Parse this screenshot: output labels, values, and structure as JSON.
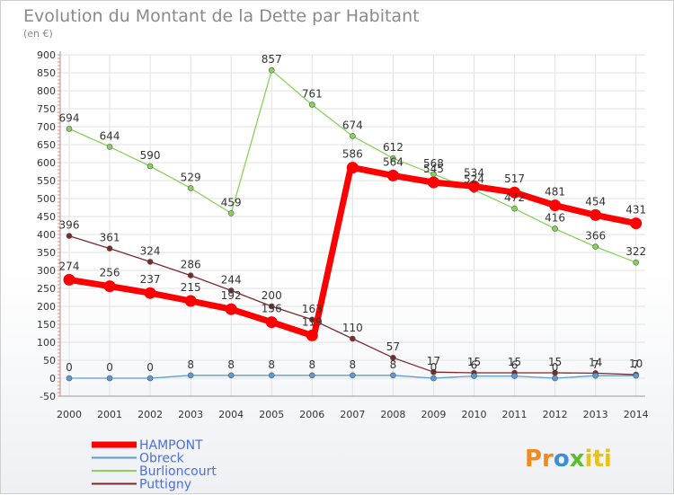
{
  "chart_data": {
    "type": "line",
    "title": "Evolution du Montant de la Dette par Habitant",
    "subtitle": "(en €)",
    "xlabel": "",
    "ylabel": "",
    "x": [
      "2000",
      "2001",
      "2002",
      "2003",
      "2004",
      "2005",
      "2006",
      "2007",
      "2008",
      "2009",
      "2010",
      "2011",
      "2012",
      "2013",
      "2014"
    ],
    "ylim": [
      -50,
      900
    ],
    "yticks": [
      -50,
      0,
      50,
      100,
      150,
      200,
      250,
      300,
      350,
      400,
      450,
      500,
      550,
      600,
      650,
      700,
      750,
      800,
      850,
      900
    ],
    "grid": true,
    "legend_position": "bottom-left",
    "series": [
      {
        "name": "Burlioncourt",
        "color": "#88d25a",
        "values": [
          694,
          644,
          590,
          529,
          459,
          857,
          761,
          674,
          612,
          568,
          524,
          472,
          416,
          366,
          322
        ],
        "labels": [
          "694",
          "644",
          "590",
          "529",
          "459",
          "857",
          "761",
          "674",
          "612",
          "568",
          "524",
          "472",
          "416",
          "366",
          "322"
        ]
      },
      {
        "name": "Puttigny",
        "color": "#7a2a2a",
        "values": [
          396,
          361,
          324,
          286,
          244,
          200,
          163,
          110,
          57,
          17,
          15,
          15,
          15,
          14,
          10
        ],
        "labels": [
          "396",
          "361",
          "324",
          "286",
          "244",
          "200",
          "163",
          "110",
          "57",
          "17",
          "15",
          "15",
          "15",
          "14",
          "10"
        ]
      },
      {
        "name": "Obreck",
        "color": "#5b9bd5",
        "values": [
          0,
          0,
          0,
          8,
          8,
          8,
          8,
          8,
          8,
          0,
          6,
          6,
          0,
          7,
          7
        ],
        "labels": [
          "0",
          "0",
          "0",
          "8",
          "8",
          "8",
          "8",
          "8",
          "8",
          "0",
          "6",
          "6",
          "0",
          "7",
          "7"
        ]
      },
      {
        "name": "HAMPONT",
        "color": "#ff0000",
        "values": [
          274,
          256,
          237,
          215,
          192,
          156,
          119,
          586,
          564,
          545,
          534,
          517,
          481,
          454,
          431
        ],
        "labels": [
          "274",
          "256",
          "237",
          "215",
          "192",
          "156",
          "119",
          "586",
          "564",
          "545",
          "534",
          "517",
          "481",
          "454",
          "431"
        ],
        "breaks": [
          6
        ]
      }
    ],
    "legend_order": [
      "HAMPONT",
      "Obreck",
      "Burlioncourt",
      "Puttigny"
    ]
  },
  "logo": {
    "parts": [
      "Pr",
      "o",
      "x",
      "iti"
    ]
  }
}
